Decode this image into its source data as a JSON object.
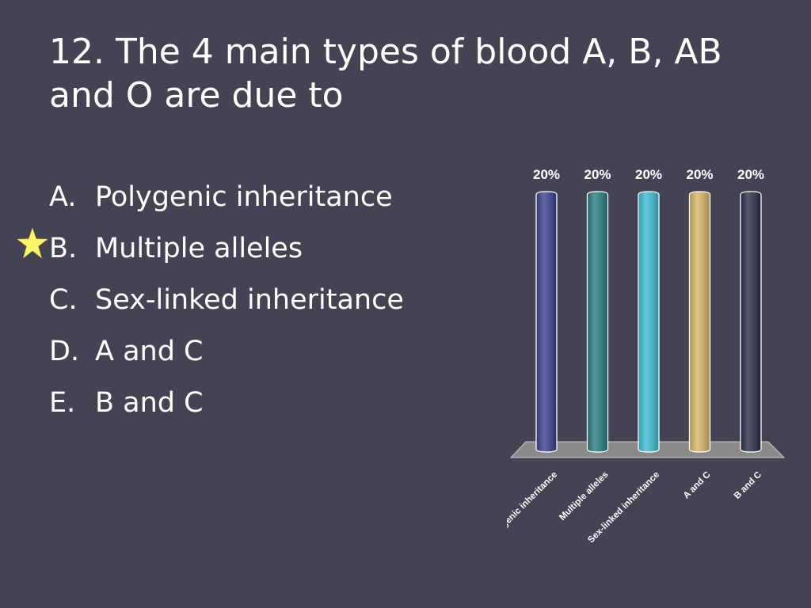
{
  "slide": {
    "title": "12. The 4 main types of blood A, B, AB and O are due to",
    "options": [
      {
        "letter": "A.",
        "text": "Polygenic inheritance"
      },
      {
        "letter": "B.",
        "text": "Multiple alleles"
      },
      {
        "letter": "C.",
        "text": "Sex-linked inheritance"
      },
      {
        "letter": "D.",
        "text": "A and C"
      },
      {
        "letter": "E.",
        "text": "B and C"
      }
    ],
    "correct_marker": "star-icon"
  },
  "chart_data": {
    "type": "bar",
    "categories": [
      "Polygenic inheritance",
      "Multiple alleles",
      "Sex-linked inheritance",
      "A and C",
      "B and C"
    ],
    "values": [
      20,
      20,
      20,
      20,
      20
    ],
    "value_labels": [
      "20%",
      "20%",
      "20%",
      "20%",
      "20%"
    ],
    "ylim": [
      0,
      20
    ],
    "grid": false,
    "colors": [
      "#4a4e8c",
      "#3a7e82",
      "#4ab0c4",
      "#c7a96e",
      "#3d3f55"
    ]
  }
}
